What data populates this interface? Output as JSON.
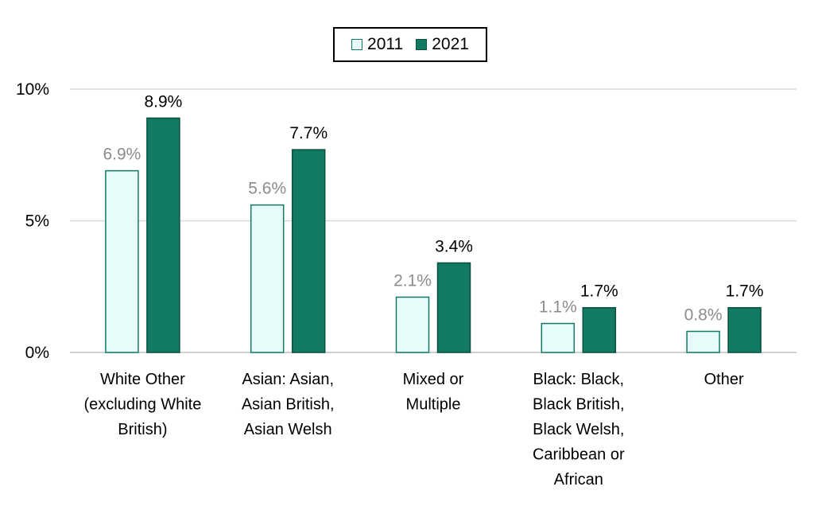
{
  "chart_data": {
    "type": "bar",
    "categories": [
      [
        "White Other",
        "(excluding White",
        "British)"
      ],
      [
        "Asian: Asian,",
        "Asian British,",
        "Asian Welsh"
      ],
      [
        "Mixed or",
        "Multiple"
      ],
      [
        "Black: Black,",
        "Black British,",
        "Black Welsh,",
        "Caribbean or",
        "African"
      ],
      [
        "Other"
      ]
    ],
    "series": [
      {
        "name": "2011",
        "values": [
          6.9,
          5.6,
          2.1,
          1.1,
          0.8
        ],
        "labels": [
          "6.9%",
          "5.6%",
          "2.1%",
          "1.1%",
          "0.8%"
        ]
      },
      {
        "name": "2021",
        "values": [
          8.9,
          7.7,
          3.4,
          1.7,
          1.7
        ],
        "labels": [
          "8.9%",
          "7.7%",
          "3.4%",
          "1.7%",
          "1.7%"
        ]
      }
    ],
    "yticks": [
      0,
      5,
      10
    ],
    "ytick_labels": [
      "0%",
      "5%",
      "10%"
    ],
    "ylim": [
      0,
      10
    ],
    "grid": true,
    "legend_position": "top-center",
    "colors": {
      "2011_fill": "#e6fbfa",
      "2011_stroke": "#137a63",
      "2021_fill": "#127a62",
      "2021_stroke": "#0b4f40",
      "label_2011": "#8c8c8c",
      "label_2021": "#000000",
      "grid": "#d9d9d9"
    }
  }
}
